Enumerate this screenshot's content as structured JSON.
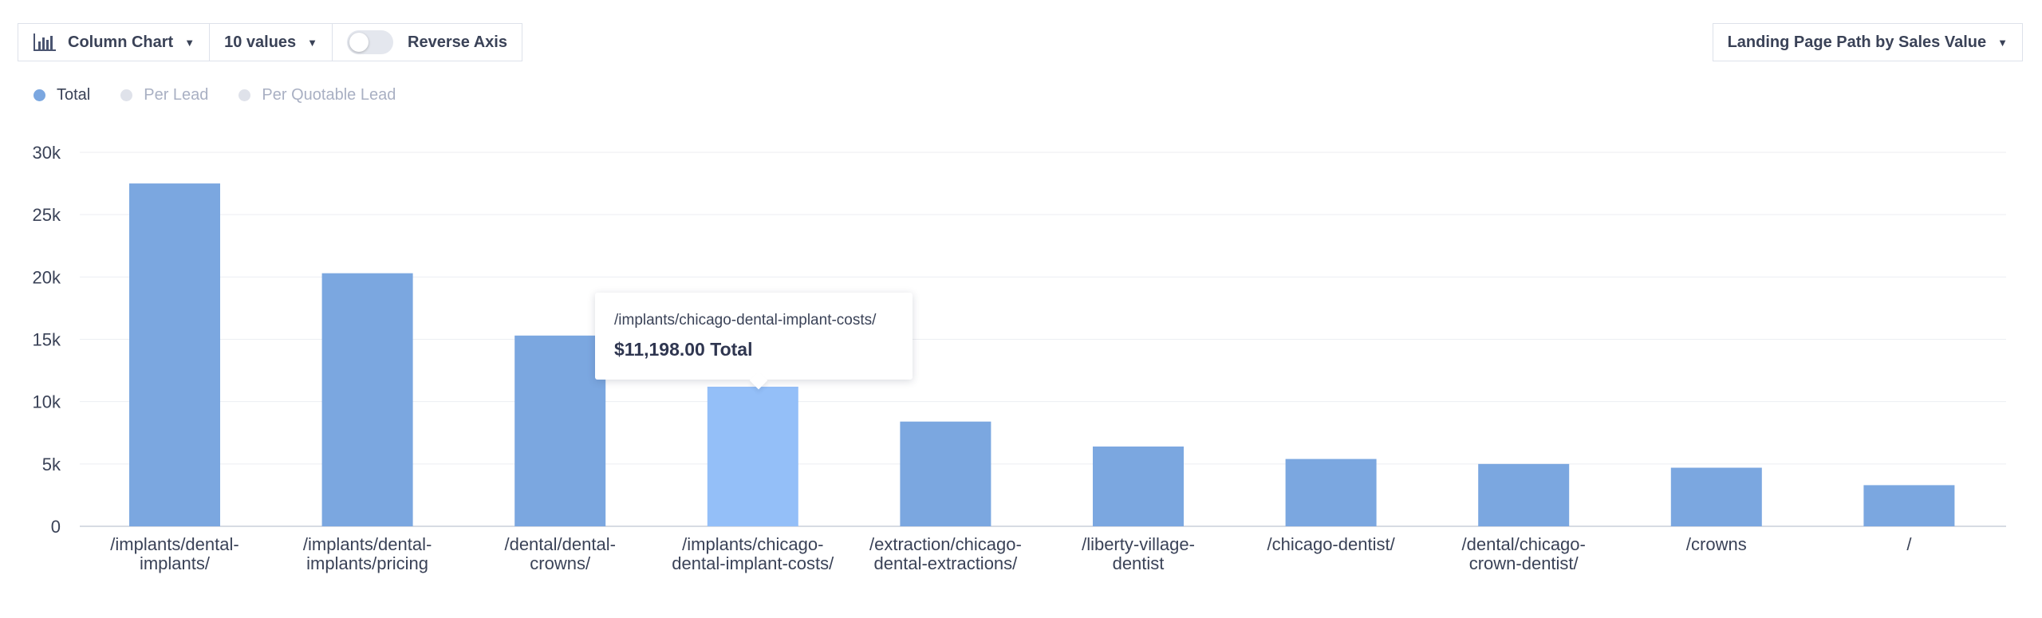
{
  "toolbar": {
    "chart_type_label": "Column Chart",
    "values_label": "10 values",
    "reverse_axis_label": "Reverse Axis",
    "reverse_axis_on": false
  },
  "dimension_dropdown": {
    "label": "Landing Page Path by Sales Value"
  },
  "legend": [
    {
      "label": "Total",
      "color": "#7ba7e0",
      "active": true
    },
    {
      "label": "Per Lead",
      "color": "#dfe2ea",
      "active": false
    },
    {
      "label": "Per Quotable Lead",
      "color": "#dfe2ea",
      "active": false
    }
  ],
  "tooltip": {
    "title": "/implants/chicago-dental-implant-costs/",
    "value": "$11,198.00 Total"
  },
  "colors": {
    "bar": "#7ba7e0",
    "bar_highlight": "#94bff8",
    "grid": "#eceef2"
  },
  "chart_data": {
    "type": "bar",
    "categories": [
      [
        "/implants/dental-",
        "implants/"
      ],
      [
        "/implants/dental-",
        "implants/pricing"
      ],
      [
        "/dental/dental-",
        "crowns/"
      ],
      [
        "/implants/chicago-",
        "dental-implant-costs/"
      ],
      [
        "/extraction/chicago-",
        "dental-extractions/"
      ],
      [
        "/liberty-village-",
        "dentist"
      ],
      [
        "/chicago-dentist/"
      ],
      [
        "/dental/chicago-",
        "crown-dentist/"
      ],
      [
        "/crowns"
      ],
      [
        "/"
      ]
    ],
    "series": [
      {
        "name": "Total",
        "values": [
          27500,
          20300,
          15300,
          11198,
          8400,
          6400,
          5400,
          5000,
          4700,
          3300
        ]
      }
    ],
    "highlight_index": 3,
    "ylim": [
      0,
      30000
    ],
    "yticks": [
      0,
      5000,
      10000,
      15000,
      20000,
      25000,
      30000
    ],
    "ytick_labels": [
      "0",
      "5k",
      "10k",
      "15k",
      "20k",
      "25k",
      "30k"
    ],
    "grid": true,
    "legend_position": "top-left"
  }
}
